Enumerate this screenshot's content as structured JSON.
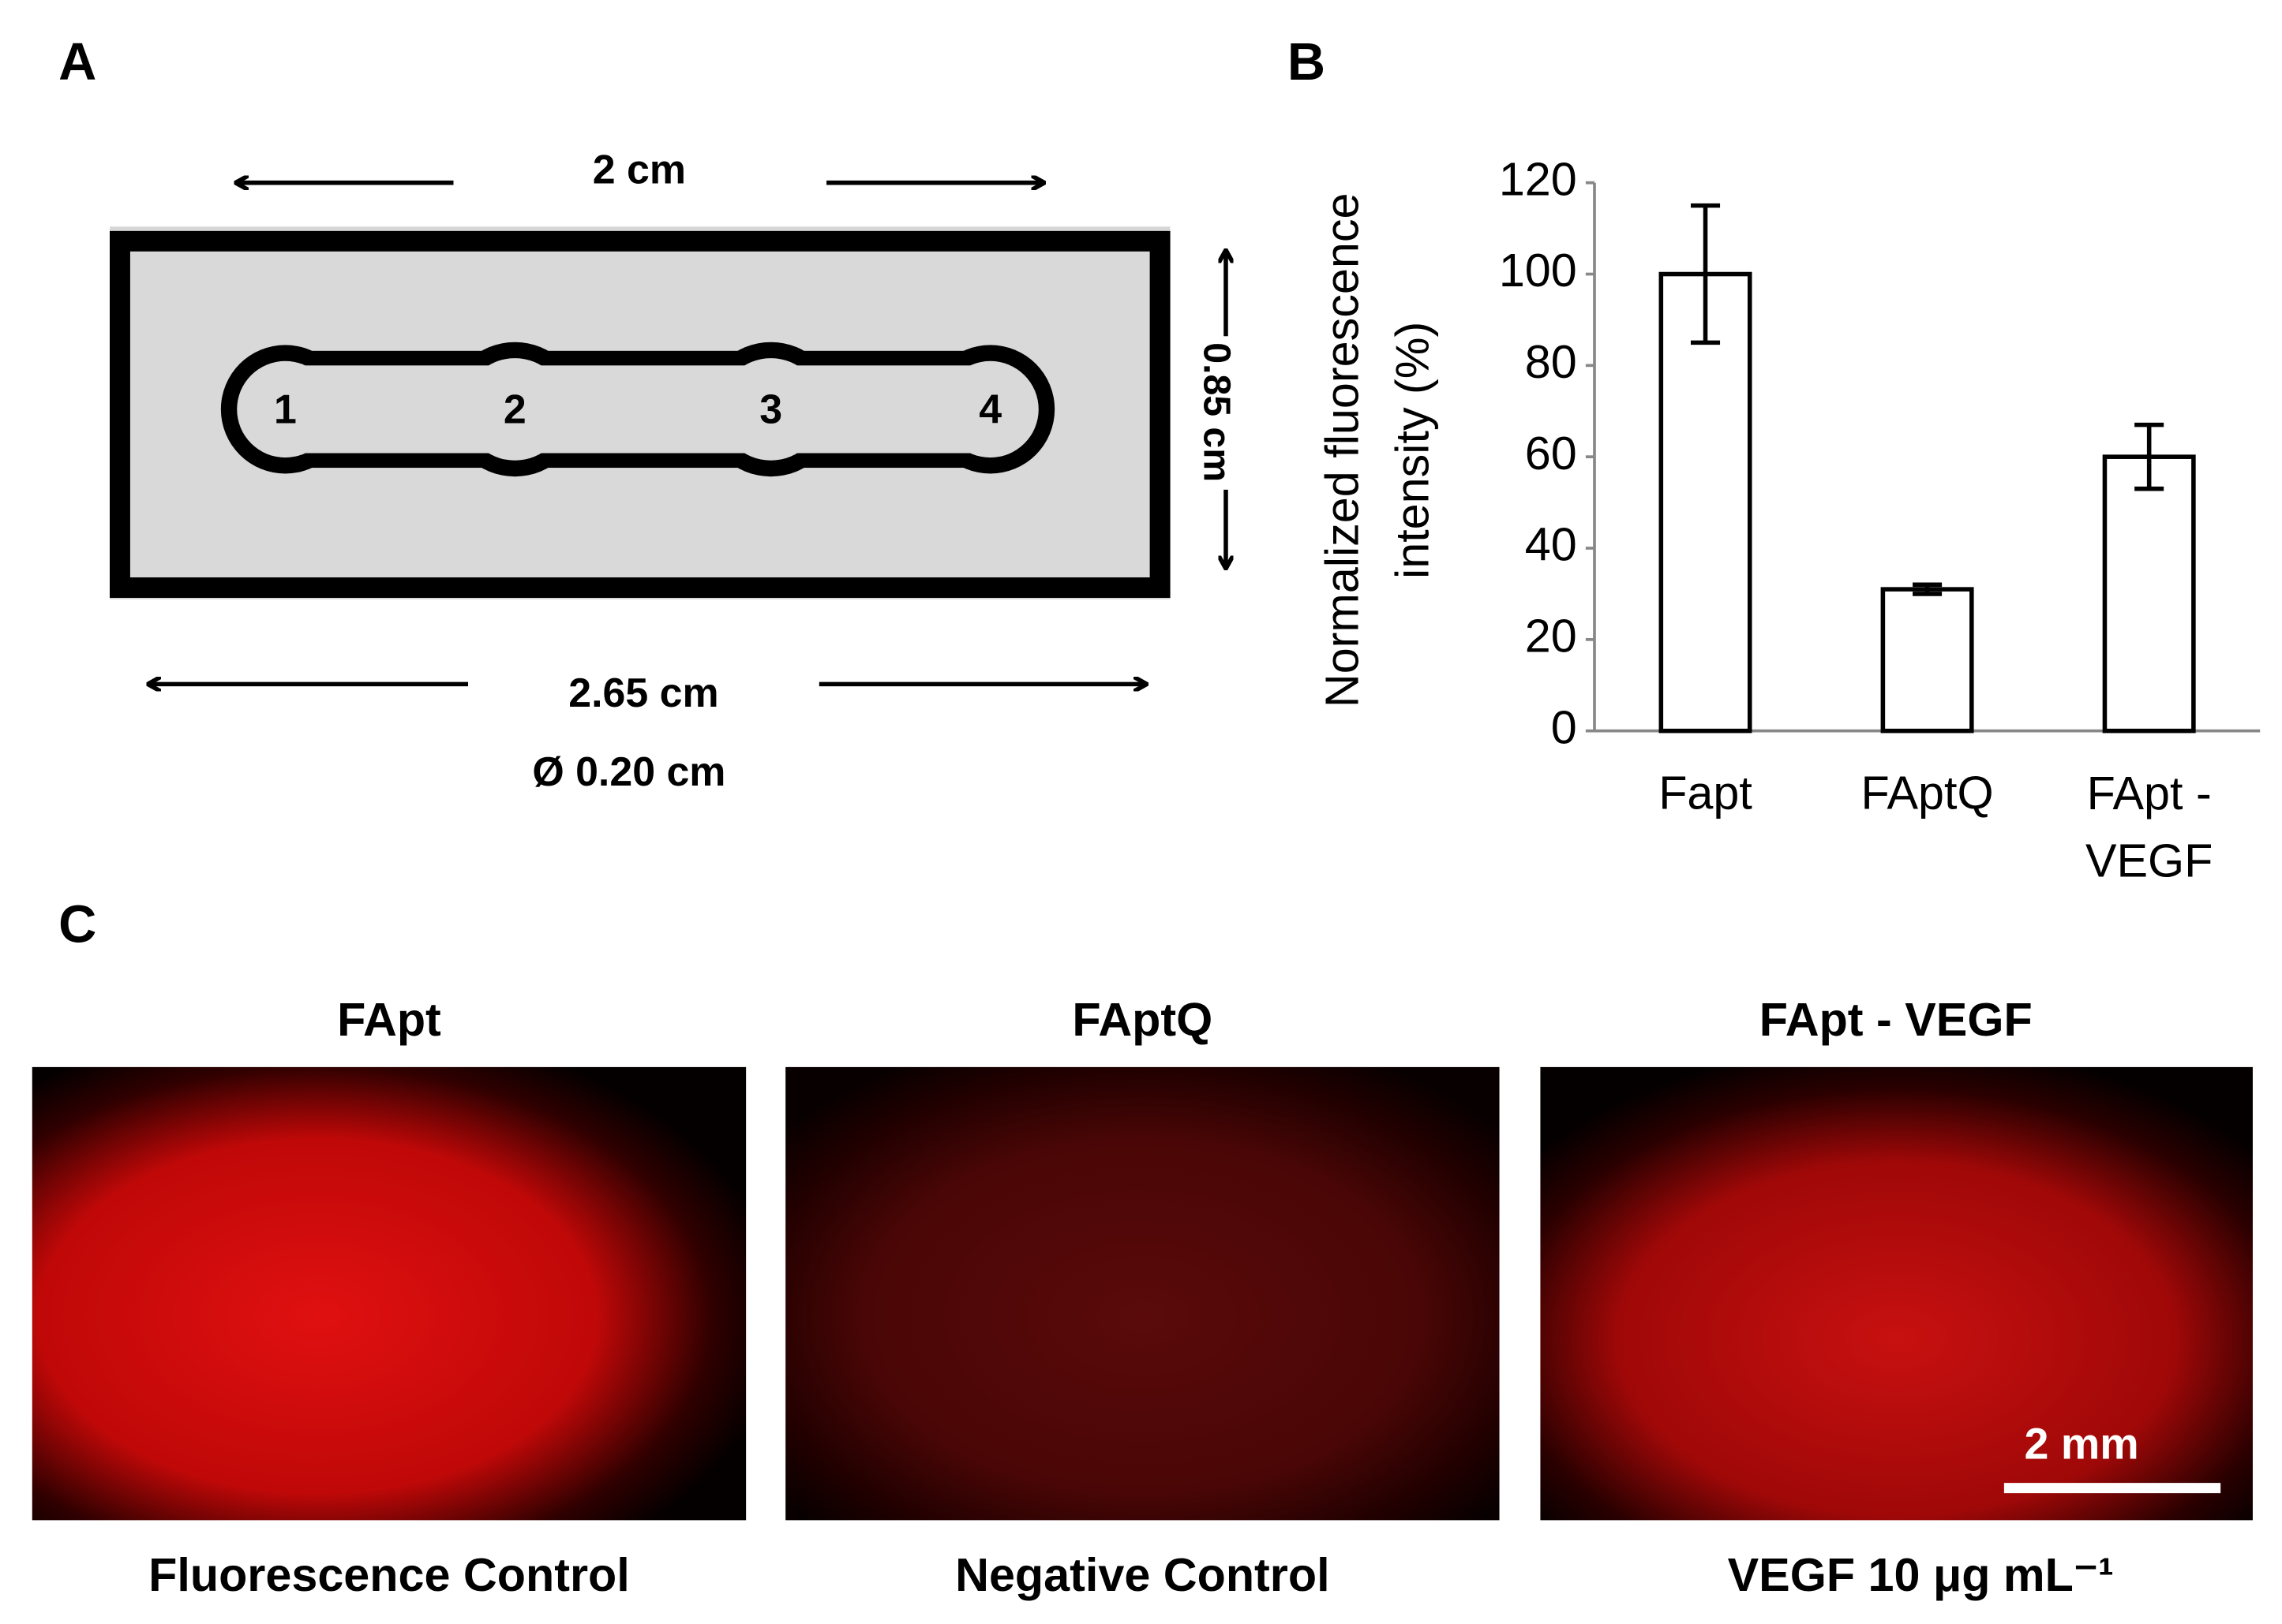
{
  "panels": {
    "a": {
      "label": "A",
      "width_label": "2 cm",
      "height_label": "0.85 cm",
      "length_label": "2.65 cm",
      "diameter_label": "Ø 0.20 cm",
      "wells": [
        "1",
        "2",
        "3",
        "4"
      ]
    },
    "b": {
      "label": "B"
    },
    "c": {
      "label": "C",
      "scale_bar": "2 mm",
      "images": [
        {
          "title": "FApt",
          "caption": "Fluorescence Control"
        },
        {
          "title": "FAptQ",
          "caption": "Negative Control"
        },
        {
          "title": "FApt - VEGF",
          "caption": "VEGF 10 μg mL⁻¹"
        }
      ]
    }
  },
  "chart_data": {
    "type": "bar",
    "y_label": [
      "Normalized  fluorescence",
      "intensity (%)"
    ],
    "categories": [
      "Fapt",
      "FAptQ",
      "FApt - VEGF"
    ],
    "values": [
      100,
      31,
      60
    ],
    "errors": [
      15,
      1,
      7
    ],
    "color": "#ffffff",
    "edge_color": "#000000",
    "ylim": [
      0,
      120
    ],
    "yticks": [
      0,
      20,
      40,
      60,
      80,
      100,
      120
    ],
    "grid": false
  }
}
